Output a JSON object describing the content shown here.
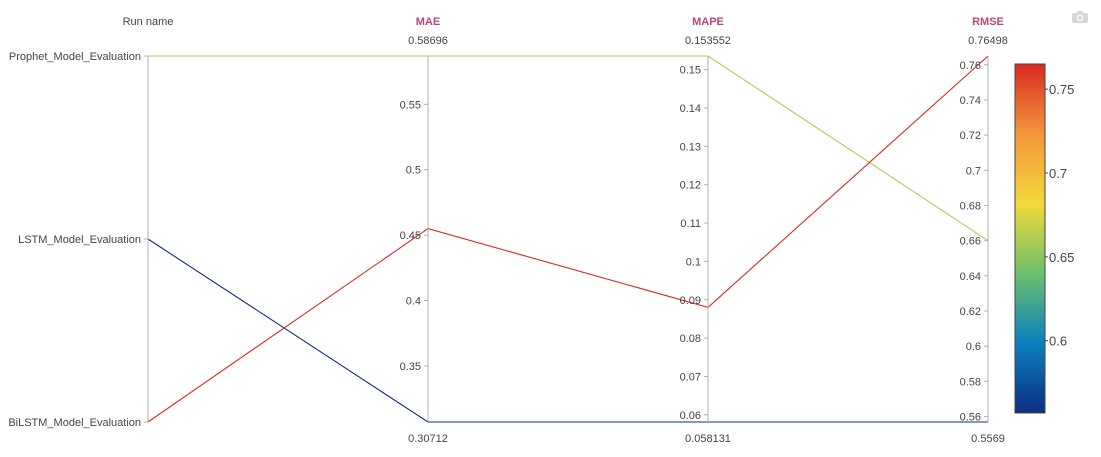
{
  "chart_data": {
    "type": "parallel-coordinates",
    "dimensions": [
      {
        "label": "Run name",
        "kind": "categorical",
        "title_color": "#444444",
        "categories": [
          "Prophet_Model_Evaluation",
          "LSTM_Model_Evaluation",
          "BiLSTM_Model_Evaluation"
        ]
      },
      {
        "label": "MAE",
        "kind": "numeric",
        "title_color": "#b7467e",
        "range": [
          0.30712,
          0.58696
        ],
        "range_labels": [
          "0.58696",
          "0.30712"
        ],
        "ticks": [
          0.35,
          0.4,
          0.45,
          0.5,
          0.55
        ],
        "tick_labels": [
          "0.35",
          "0.4",
          "0.45",
          "0.5",
          "0.55"
        ]
      },
      {
        "label": "MAPE",
        "kind": "numeric",
        "title_color": "#b7467e",
        "range": [
          0.058131,
          0.153552
        ],
        "range_labels": [
          "0.153552",
          "0.058131"
        ],
        "ticks": [
          0.06,
          0.07,
          0.08,
          0.09,
          0.1,
          0.11,
          0.12,
          0.13,
          0.14,
          0.15
        ],
        "tick_labels": [
          "0.06",
          "0.07",
          "0.08",
          "0.09",
          "0.1",
          "0.11",
          "0.12",
          "0.13",
          "0.14",
          "0.15"
        ]
      },
      {
        "label": "RMSE",
        "kind": "numeric",
        "title_color": "#b7467e",
        "range": [
          0.5569,
          0.76498
        ],
        "range_labels": [
          "0.76498",
          "0.5569"
        ],
        "ticks": [
          0.56,
          0.58,
          0.6,
          0.62,
          0.64,
          0.66,
          0.68,
          0.7,
          0.72,
          0.74,
          0.76
        ],
        "tick_labels": [
          "0.56",
          "0.58",
          "0.6",
          "0.62",
          "0.64",
          "0.66",
          "0.68",
          "0.7",
          "0.72",
          "0.74",
          "0.76"
        ]
      }
    ],
    "series": [
      {
        "run": "Prophet_Model_Evaluation",
        "values": [
          0.58696,
          0.153552,
          0.66
        ]
      },
      {
        "run": "LSTM_Model_Evaluation",
        "values": [
          0.30712,
          0.058131,
          0.5569
        ]
      },
      {
        "run": "BiLSTM_Model_Evaluation",
        "values": [
          0.455,
          0.088,
          0.76498
        ]
      }
    ],
    "colorbar": {
      "metric": "RMSE",
      "range": [
        0.5569,
        0.76498
      ],
      "ticks": [
        0.6,
        0.65,
        0.7,
        0.75
      ],
      "tick_labels": [
        "0.6",
        "0.65",
        "0.7",
        "0.75"
      ],
      "colors": [
        "#0d2f80",
        "#0b7fbf",
        "#6cc06a",
        "#f2d93a",
        "#f3963a",
        "#db2a22"
      ]
    },
    "legend": "colorbar-right"
  },
  "toolbar": {
    "icon": "camera-icon"
  }
}
